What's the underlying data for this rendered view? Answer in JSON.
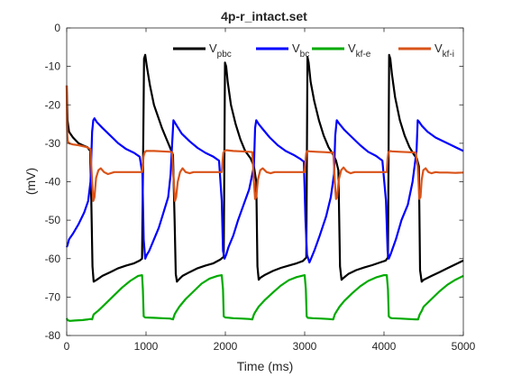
{
  "chart_data": {
    "type": "line",
    "title": "4p-r_intact.set",
    "xlabel": "Time (ms)",
    "ylabel": "(mV)",
    "xlim": [
      0,
      5000
    ],
    "ylim": [
      -80,
      0
    ],
    "xticks": [
      0,
      1000,
      2000,
      3000,
      4000,
      5000
    ],
    "yticks": [
      0,
      -10,
      -20,
      -30,
      -40,
      -50,
      -60,
      -70,
      -80
    ],
    "grid": false,
    "legend_position": "top-right",
    "legend": [
      {
        "main": "V",
        "sub": "pbc",
        "color": "#000000"
      },
      {
        "main": "V",
        "sub": "bc",
        "color": "#0000ff"
      },
      {
        "main": "V",
        "sub": "kf-e",
        "color": "#00aa00"
      },
      {
        "main": "V",
        "sub": "kf-i",
        "color": "#d95319"
      }
    ],
    "series": [
      {
        "legend_index": 0,
        "color": "#000000",
        "x": [
          0,
          10,
          30,
          80,
          150,
          200,
          260,
          295,
          310,
          325,
          340,
          380,
          450,
          550,
          650,
          750,
          850,
          920,
          950,
          960,
          975,
          990,
          1010,
          1050,
          1100,
          1150,
          1200,
          1250,
          1300,
          1340,
          1360,
          1375,
          1390,
          1410,
          1460,
          1550,
          1650,
          1750,
          1850,
          1940,
          1980,
          1995,
          2010,
          2030,
          2070,
          2130,
          2190,
          2250,
          2320,
          2360,
          2390,
          2405,
          2420,
          2440,
          2500,
          2600,
          2700,
          2800,
          2900,
          2980,
          3020,
          3035,
          3050,
          3075,
          3120,
          3180,
          3240,
          3300,
          3360,
          3395,
          3425,
          3445,
          3465,
          3490,
          3550,
          3650,
          3750,
          3850,
          3950,
          4020,
          4050,
          4065,
          4080,
          4100,
          4140,
          4200,
          4260,
          4320,
          4380,
          4415,
          4440,
          4455,
          4475,
          4500,
          4600,
          4700,
          4800,
          4900,
          5000
        ],
        "y": [
          -15,
          -24,
          -27,
          -28.5,
          -30,
          -30.5,
          -31,
          -32,
          -45,
          -62,
          -66,
          -65.5,
          -64.5,
          -63.5,
          -62.5,
          -61.8,
          -61.2,
          -60.5,
          -60,
          -40,
          -8,
          -7,
          -10,
          -15,
          -20,
          -23,
          -26,
          -28.5,
          -31,
          -33,
          -50,
          -64,
          -66,
          -65.5,
          -64.5,
          -63.5,
          -62.5,
          -61.8,
          -61.2,
          -60.2,
          -59.5,
          -9,
          -10,
          -14,
          -20,
          -25,
          -29,
          -32,
          -34,
          -36,
          -40,
          -62,
          -65.5,
          -65,
          -64.2,
          -63.2,
          -62.4,
          -61.8,
          -61.2,
          -60.6,
          -59.7,
          -7.5,
          -9,
          -14,
          -19,
          -24,
          -28,
          -31,
          -33,
          -34.5,
          -37,
          -62,
          -65.5,
          -65,
          -64,
          -63,
          -62.3,
          -61.7,
          -61,
          -60.5,
          -59.7,
          -7,
          -8,
          -12,
          -18,
          -24,
          -28,
          -31,
          -33,
          -34,
          -36,
          -63,
          -66,
          -65.5,
          -64.5,
          -63.5,
          -62.5,
          -61.5,
          -60.5
        ]
      },
      {
        "legend_index": 1,
        "color": "#0000ff",
        "x": [
          0,
          10,
          30,
          80,
          150,
          220,
          270,
          300,
          320,
          335,
          350,
          380,
          450,
          550,
          650,
          750,
          850,
          920,
          955,
          970,
          990,
          1010,
          1040,
          1100,
          1160,
          1220,
          1280,
          1310,
          1330,
          1345,
          1360,
          1390,
          1450,
          1550,
          1650,
          1750,
          1850,
          1920,
          1955,
          1970,
          1990,
          2010,
          2040,
          2100,
          2160,
          2230,
          2300,
          2360,
          2375,
          2390,
          2420,
          2480,
          2560,
          2660,
          2760,
          2860,
          2940,
          2990,
          3010,
          3030,
          3060,
          3120,
          3190,
          3270,
          3330,
          3370,
          3385,
          3405,
          3440,
          3500,
          3600,
          3700,
          3800,
          3900,
          3980,
          4025,
          4045,
          4060,
          4090,
          4150,
          4220,
          4300,
          4360,
          4410,
          4425,
          4445,
          4480,
          4550,
          4650,
          4750,
          4850,
          4950,
          5000
        ],
        "y": [
          -57,
          -56.5,
          -55,
          -53.5,
          -51,
          -48,
          -45,
          -40,
          -27,
          -24,
          -23.5,
          -24.5,
          -26,
          -28,
          -30,
          -31.5,
          -32.5,
          -33.5,
          -38,
          -55,
          -60,
          -59,
          -58,
          -55,
          -52,
          -48,
          -44,
          -38,
          -30,
          -24,
          -24.5,
          -25.5,
          -27.5,
          -29.5,
          -31.2,
          -32.5,
          -33.5,
          -34.5,
          -45,
          -58,
          -60,
          -59,
          -57,
          -54,
          -50,
          -46,
          -42,
          -36,
          -26,
          -24,
          -25,
          -26.5,
          -28.5,
          -30.5,
          -32,
          -33,
          -34,
          -34.8,
          -50,
          -59,
          -61,
          -58,
          -54,
          -49,
          -44,
          -38,
          -28,
          -24,
          -25,
          -26.5,
          -28.5,
          -30.5,
          -32.2,
          -33.3,
          -34.5,
          -45,
          -58,
          -60,
          -58.5,
          -55,
          -50,
          -46,
          -40,
          -32,
          -24,
          -24.5,
          -25.5,
          -27,
          -28.5,
          -29.5,
          -30.5,
          -31.5,
          -32
        ]
      },
      {
        "legend_index": 2,
        "color": "#00aa00",
        "x": [
          0,
          10,
          40,
          100,
          200,
          270,
          300,
          320,
          340,
          400,
          500,
          600,
          700,
          800,
          900,
          950,
          960,
          970,
          990,
          1100,
          1200,
          1300,
          1340,
          1360,
          1380,
          1420,
          1500,
          1600,
          1700,
          1800,
          1900,
          1955,
          1970,
          1980,
          2000,
          2100,
          2200,
          2300,
          2340,
          2360,
          2380,
          2420,
          2500,
          2600,
          2700,
          2800,
          2900,
          3000,
          3015,
          3025,
          3040,
          3100,
          3200,
          3300,
          3360,
          3380,
          3400,
          3440,
          3500,
          3600,
          3700,
          3800,
          3900,
          4000,
          4035,
          4050,
          4060,
          4080,
          4100,
          4200,
          4300,
          4400,
          4430,
          4450,
          4470,
          4500,
          4600,
          4700,
          4800,
          4900,
          5000
        ],
        "y": [
          -75.5,
          -76,
          -76.2,
          -76.1,
          -76,
          -75.8,
          -75.7,
          -75.8,
          -74.5,
          -73.5,
          -71.5,
          -69.5,
          -67.5,
          -65.8,
          -64.5,
          -64.3,
          -68,
          -75,
          -75.3,
          -75.4,
          -75.5,
          -75.6,
          -75.8,
          -74.5,
          -73.8,
          -72.5,
          -70.5,
          -68.5,
          -66.5,
          -65.2,
          -64.5,
          -64.3,
          -68,
          -75,
          -75.3,
          -75.5,
          -75.6,
          -75.7,
          -75.8,
          -74.5,
          -73.8,
          -72.5,
          -70.7,
          -68.8,
          -67,
          -65.6,
          -64.8,
          -64.3,
          -68,
          -75,
          -75.4,
          -75.5,
          -75.6,
          -75.7,
          -75.8,
          -74.5,
          -73.8,
          -72.5,
          -71,
          -69,
          -67.2,
          -65.8,
          -64.9,
          -64.3,
          -64.3,
          -68,
          -75,
          -75.4,
          -75.5,
          -75.6,
          -75.7,
          -75.8,
          -75.8,
          -74.5,
          -73.8,
          -72.5,
          -70.5,
          -68.5,
          -66.8,
          -65.5,
          -64.5
        ]
      },
      {
        "legend_index": 3,
        "color": "#d95319",
        "x": [
          0,
          3,
          8,
          15,
          30,
          80,
          150,
          250,
          300,
          310,
          320,
          335,
          350,
          370,
          400,
          430,
          470,
          520,
          600,
          700,
          800,
          900,
          950,
          962,
          968,
          980,
          1000,
          1100,
          1200,
          1300,
          1330,
          1340,
          1350,
          1365,
          1380,
          1400,
          1430,
          1460,
          1500,
          1550,
          1600,
          1700,
          1800,
          1900,
          1955,
          1968,
          1975,
          1990,
          2010,
          2100,
          2200,
          2300,
          2340,
          2350,
          2360,
          2375,
          2390,
          2410,
          2440,
          2470,
          2520,
          2570,
          2620,
          2700,
          2800,
          2900,
          3000,
          3012,
          3020,
          3035,
          3060,
          3150,
          3250,
          3330,
          3360,
          3370,
          3380,
          3395,
          3410,
          3430,
          3460,
          3490,
          3530,
          3580,
          3630,
          3700,
          3800,
          3900,
          4000,
          4035,
          4045,
          4055,
          4070,
          4100,
          4200,
          4300,
          4400,
          4425,
          4435,
          4445,
          4460,
          4475,
          4495,
          4525,
          4560,
          4600,
          4650,
          4700,
          4800,
          4900,
          5000
        ],
        "y": [
          -15,
          -25,
          -28,
          -29.5,
          -30,
          -30.3,
          -30.5,
          -31,
          -31.5,
          -36,
          -40,
          -45,
          -44,
          -39,
          -37,
          -36.5,
          -37.5,
          -38,
          -37.5,
          -37.5,
          -37.5,
          -37.5,
          -37.5,
          -35,
          -33.5,
          -32.5,
          -32,
          -32,
          -32.1,
          -32.2,
          -32.3,
          -37,
          -40,
          -45,
          -44,
          -40,
          -37.5,
          -36.5,
          -37.5,
          -37.8,
          -37.5,
          -37.5,
          -37.5,
          -37.5,
          -37.5,
          -34,
          -32.5,
          -32,
          -31.8,
          -32,
          -32.1,
          -32.2,
          -32.3,
          -36,
          -40,
          -44.5,
          -44,
          -39.5,
          -37,
          -36.5,
          -37.5,
          -37.8,
          -37.5,
          -37.5,
          -37.5,
          -37.5,
          -37.5,
          -34,
          -32.5,
          -32,
          -32.1,
          -32.2,
          -32.3,
          -32.4,
          -32.4,
          -36,
          -40,
          -44.5,
          -44,
          -39.5,
          -37,
          -36.3,
          -37.3,
          -37.8,
          -37.5,
          -37.5,
          -37.5,
          -37.5,
          -37.5,
          -37.5,
          -34,
          -32.5,
          -32,
          -32.1,
          -32.2,
          -32.3,
          -32.4,
          -36,
          -40,
          -44.5,
          -44,
          -39.5,
          -37,
          -36.5,
          -37.5,
          -37.8,
          -37.5,
          -37.6,
          -37.6,
          -37.7,
          -37.6
        ]
      }
    ]
  }
}
